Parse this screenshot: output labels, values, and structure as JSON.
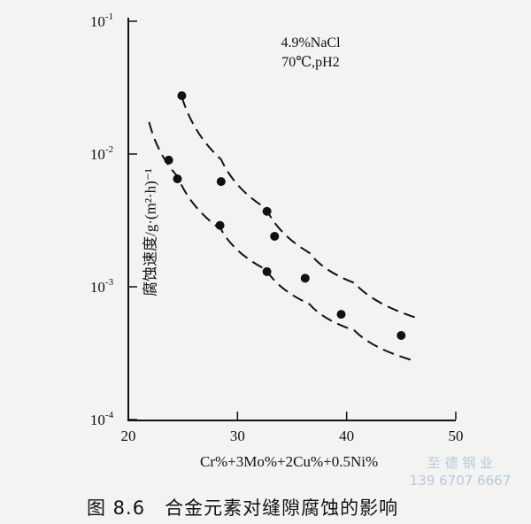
{
  "chart_data": {
    "type": "scatter",
    "title": "",
    "annotation": [
      "4.9%NaCl",
      "70℃,pH2"
    ],
    "xlabel": "Cr%+3Mo%+2Cu%+0.5Ni%",
    "ylabel": "腐蚀速度/g·(m²·h)⁻¹",
    "xlim": [
      20,
      50
    ],
    "ylim": [
      0.0001,
      0.1
    ],
    "yscale": "log",
    "x_ticks": [
      "20",
      "30",
      "40",
      "50"
    ],
    "y_ticks": [
      {
        "base": "10",
        "exp": "-1",
        "value": 0.1
      },
      {
        "base": "10",
        "exp": "-2",
        "value": 0.01
      },
      {
        "base": "10",
        "exp": "-3",
        "value": 0.001
      },
      {
        "base": "10",
        "exp": "-4",
        "value": 0.0001
      }
    ],
    "points": [
      {
        "x": 24.9,
        "y": 0.0275
      },
      {
        "x": 23.7,
        "y": 0.009
      },
      {
        "x": 24.5,
        "y": 0.0065
      },
      {
        "x": 28.5,
        "y": 0.0062
      },
      {
        "x": 28.4,
        "y": 0.0029
      },
      {
        "x": 32.7,
        "y": 0.0037
      },
      {
        "x": 33.4,
        "y": 0.0024
      },
      {
        "x": 32.7,
        "y": 0.0013
      },
      {
        "x": 36.2,
        "y": 0.00116
      },
      {
        "x": 39.5,
        "y": 0.00062
      },
      {
        "x": 45.0,
        "y": 0.00043
      }
    ],
    "bounds": [
      {
        "name": "upper",
        "style": "dashed",
        "x": [
          24.9,
          28.5,
          32.6,
          36.6,
          40.7,
          46.5
        ],
        "y": [
          0.0269,
          0.0091,
          0.0039,
          0.0018,
          0.00107,
          0.00058
        ]
      },
      {
        "name": "lower",
        "style": "dashed",
        "x": [
          21.9,
          24.5,
          28.5,
          32.6,
          36.6,
          40.7,
          46.0
        ],
        "y": [
          0.0174,
          0.0068,
          0.0027,
          0.00135,
          0.00074,
          0.00047,
          0.00028
        ]
      }
    ]
  },
  "caption": "图 8.6　合金元素对缝隙腐蚀的影响",
  "watermark": {
    "name": "至 德 钢 业",
    "phone": "139 6707 6667"
  },
  "colors": {
    "ink": "#111111",
    "watermark": "#b7c9dc"
  }
}
